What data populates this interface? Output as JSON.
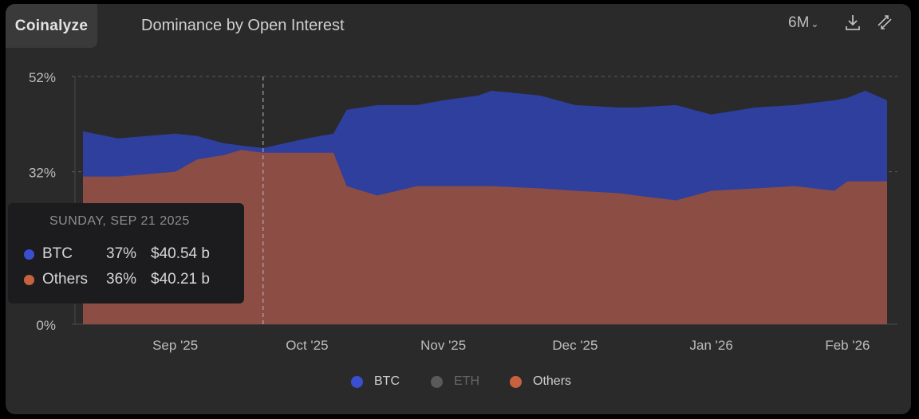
{
  "header": {
    "brand": "Coinalyze",
    "title": "Dominance by Open Interest",
    "range": "6M",
    "range_chevron": "⌄",
    "icons": [
      "download-icon",
      "expand-icon"
    ]
  },
  "colors": {
    "btc_area": "#2e3f9e",
    "others_area": "#8c4d45",
    "btc_dot": "#3a4fd0",
    "others_dot": "#c8623e",
    "eth_dot": "#5a5a5a",
    "background": "#2a2a2a"
  },
  "tooltip": {
    "date": "SUNDAY, SEP 21 2025",
    "rows": [
      {
        "name": "BTC",
        "pct": "37%",
        "value": "$40.54 b"
      },
      {
        "name": "Others",
        "pct": "36%",
        "value": "$40.21 b"
      }
    ]
  },
  "legend": [
    {
      "name": "BTC",
      "active": true
    },
    {
      "name": "ETH",
      "active": false
    },
    {
      "name": "Others",
      "active": true
    }
  ],
  "chart_data": {
    "type": "area",
    "title": "Dominance by Open Interest",
    "y_ticks": [
      "52%",
      "32%",
      "0%"
    ],
    "y_tick_values": [
      52,
      32,
      0
    ],
    "ylim": [
      0,
      52
    ],
    "x_ticks": [
      "Sep '25",
      "Oct '25",
      "Nov '25",
      "Dec '25",
      "Jan '26",
      "Feb '26"
    ],
    "x_tick_dates": [
      "2025-09-01",
      "2025-10-01",
      "2025-11-01",
      "2025-12-01",
      "2026-01-01",
      "2026-02-01"
    ],
    "xlim": [
      "2025-08-11",
      "2026-02-10"
    ],
    "hover_date": "2025-09-21",
    "grid": "dashed horizontal",
    "legend_position": "bottom",
    "dates": [
      "2025-08-11",
      "2025-08-19",
      "2025-09-01",
      "2025-09-06",
      "2025-09-12",
      "2025-09-16",
      "2025-09-21",
      "2025-10-01",
      "2025-10-07",
      "2025-10-10",
      "2025-10-17",
      "2025-10-26",
      "2025-11-01",
      "2025-11-09",
      "2025-11-12",
      "2025-11-23",
      "2025-12-01",
      "2025-12-11",
      "2025-12-15",
      "2025-12-24",
      "2026-01-01",
      "2026-01-11",
      "2026-01-20",
      "2026-01-29",
      "2026-02-01",
      "2026-02-05",
      "2026-02-10"
    ],
    "series": [
      {
        "name": "BTC",
        "values": [
          40.5,
          39,
          40,
          39.5,
          38,
          37.5,
          37,
          39,
          40,
          45,
          46,
          46,
          47,
          48,
          49,
          48,
          46,
          45.5,
          45.5,
          46,
          44,
          45.5,
          46,
          47,
          47.5,
          49,
          47
        ]
      },
      {
        "name": "Others",
        "values": [
          31,
          31,
          32,
          34.6,
          35.5,
          36.6,
          36,
          36,
          36,
          29,
          27,
          29,
          29,
          29,
          29,
          28.5,
          28,
          27.5,
          27,
          26,
          28,
          28.5,
          29,
          28,
          30,
          30,
          30
        ]
      }
    ]
  }
}
